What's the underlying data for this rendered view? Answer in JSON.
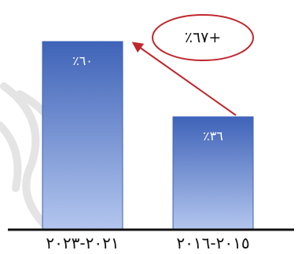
{
  "chart_data": {
    "type": "bar",
    "categories": [
      "٢٠٢١-٢٠٢٣",
      "٢٠١٥-٢٠١٦"
    ],
    "values": [
      60,
      36
    ],
    "data_labels": [
      "٪٦٠",
      "٪٣٦"
    ],
    "ylim": [
      0,
      67
    ],
    "grid": false,
    "annotation": {
      "text": "٪٦٧+",
      "from_category": "٢٠١٥-٢٠١٦",
      "to_category": "٢٠٢١-٢٠٢٣"
    },
    "colors": {
      "bar_dark": "#3f63b8",
      "bar_light": "#a9bde8",
      "callout_border": "#c0272d",
      "axis": "#111111",
      "watermark": "#dcdcdc"
    }
  }
}
